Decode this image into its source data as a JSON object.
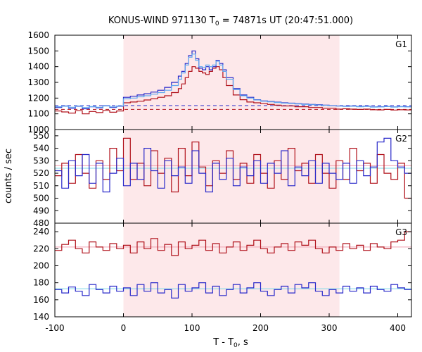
{
  "chart_data": {
    "type": "line",
    "title_main": "KONUS-WIND 971130 T",
    "title_sub": "0",
    "title_rest": " = 74871s UT (20:47:51.000)",
    "xlabel_main": "T - T",
    "xlabel_sub": "0",
    "xlabel_rest": ", s",
    "ylabel": "counts / sec",
    "xlim": [
      -100,
      420
    ],
    "xticks": [
      -100,
      0,
      100,
      200,
      300,
      400
    ],
    "shaded_interval": [
      0,
      315
    ],
    "colors": {
      "shade": "#fde8ea",
      "red": "#b0101a",
      "blue": "#2727c9",
      "light_blue": "#5fa8f0",
      "pink": "#f0a0b0",
      "light_cyan": "#7fd8e8"
    },
    "panels": [
      {
        "label": "G1",
        "ylim": [
          1000,
          1600
        ],
        "yticks": [
          1000,
          1100,
          1200,
          1300,
          1400,
          1500,
          1600
        ],
        "background_levels": [
          {
            "color": "red",
            "value": 1128
          },
          {
            "color": "blue",
            "value": 1152
          }
        ],
        "series": [
          {
            "color": "red",
            "x": [
              -100,
              -90,
              -80,
              -70,
              -60,
              -50,
              -40,
              -30,
              -20,
              -10,
              0,
              10,
              20,
              30,
              40,
              50,
              60,
              70,
              80,
              85,
              90,
              95,
              100,
              105,
              110,
              115,
              120,
              125,
              130,
              135,
              140,
              145,
              150,
              160,
              170,
              180,
              190,
              200,
              210,
              220,
              230,
              240,
              250,
              260,
              270,
              280,
              290,
              300,
              310,
              320,
              330,
              340,
              350,
              360,
              370,
              380,
              390,
              400,
              410
            ],
            "y": [
              1118,
              1112,
              1105,
              1120,
              1100,
              1115,
              1108,
              1122,
              1110,
              1118,
              1170,
              1175,
              1180,
              1188,
              1195,
              1205,
              1215,
              1235,
              1260,
              1290,
              1330,
              1370,
              1400,
              1390,
              1370,
              1360,
              1350,
              1370,
              1390,
              1400,
              1380,
              1330,
              1280,
              1220,
              1190,
              1175,
              1170,
              1165,
              1160,
              1155,
              1150,
              1150,
              1145,
              1145,
              1140,
              1140,
              1135,
              1135,
              1130,
              1132,
              1130,
              1128,
              1130,
              1126,
              1125,
              1128,
              1124,
              1126,
              1125
            ]
          },
          {
            "color": "blue",
            "x": [
              -100,
              -90,
              -80,
              -70,
              -60,
              -50,
              -40,
              -30,
              -20,
              -10,
              0,
              10,
              20,
              30,
              40,
              50,
              60,
              70,
              80,
              85,
              90,
              95,
              100,
              105,
              110,
              115,
              120,
              125,
              130,
              135,
              140,
              145,
              150,
              160,
              170,
              180,
              190,
              200,
              210,
              220,
              230,
              240,
              250,
              260,
              270,
              280,
              290,
              300,
              310,
              320,
              330,
              340,
              350,
              360,
              370,
              380,
              390,
              400,
              410
            ],
            "y": [
              1140,
              1150,
              1135,
              1148,
              1132,
              1145,
              1138,
              1152,
              1140,
              1148,
              1205,
              1212,
              1220,
              1228,
              1238,
              1250,
              1268,
              1300,
              1340,
              1370,
              1420,
              1470,
              1500,
              1450,
              1390,
              1380,
              1400,
              1380,
              1400,
              1440,
              1420,
              1380,
              1330,
              1260,
              1220,
              1205,
              1190,
              1182,
              1178,
              1174,
              1170,
              1168,
              1165,
              1162,
              1160,
              1158,
              1155,
              1152,
              1150,
              1148,
              1150,
              1146,
              1148,
              1144,
              1145,
              1147,
              1144,
              1146,
              1145
            ]
          },
          {
            "color": "light_blue",
            "x": [
              -100,
              -90,
              -80,
              -70,
              -60,
              -50,
              -40,
              -30,
              -20,
              -10,
              0,
              10,
              20,
              30,
              40,
              50,
              60,
              70,
              80,
              85,
              90,
              95,
              100,
              105,
              110,
              115,
              120,
              125,
              130,
              135,
              140,
              145,
              150,
              160,
              170,
              180,
              190,
              200,
              210,
              220,
              230,
              240,
              250,
              260,
              270,
              280,
              290,
              300,
              310,
              320,
              330,
              340,
              350,
              360,
              370,
              380,
              390,
              400,
              410
            ],
            "y": [
              1145,
              1148,
              1142,
              1150,
              1140,
              1146,
              1142,
              1150,
              1144,
              1150,
              1195,
              1200,
              1208,
              1215,
              1225,
              1235,
              1250,
              1280,
              1320,
              1360,
              1410,
              1460,
              1480,
              1440,
              1400,
              1395,
              1410,
              1400,
              1410,
              1435,
              1410,
              1370,
              1320,
              1255,
              1215,
              1200,
              1188,
              1180,
              1176,
              1172,
              1168,
              1166,
              1163,
              1160,
              1158,
              1156,
              1154,
              1151,
              1149,
              1147,
              1148,
              1145,
              1147,
              1143,
              1144,
              1146,
              1143,
              1145,
              1144
            ]
          }
        ]
      },
      {
        "label": "G2",
        "ylim": [
          480,
          555
        ],
        "yticks": [
          480,
          490,
          500,
          510,
          520,
          530,
          540,
          550
        ],
        "background_levels": [
          {
            "color": "pink",
            "value": 526
          },
          {
            "color": "light_cyan",
            "value": 524
          }
        ],
        "series": [
          {
            "color": "red",
            "x": [
              -100,
              -90,
              -80,
              -70,
              -60,
              -50,
              -40,
              -30,
              -20,
              -10,
              0,
              10,
              20,
              30,
              40,
              50,
              60,
              70,
              80,
              90,
              100,
              110,
              120,
              130,
              140,
              150,
              160,
              170,
              180,
              190,
              200,
              210,
              220,
              230,
              240,
              250,
              260,
              270,
              280,
              290,
              300,
              310,
              320,
              330,
              340,
              350,
              360,
              370,
              380,
              390,
              400,
              410
            ],
            "y": [
              518,
              528,
              512,
              535,
              520,
              508,
              530,
              515,
              540,
              522,
              548,
              515,
              528,
              510,
              538,
              520,
              532,
              505,
              540,
              518,
              545,
              525,
              510,
              530,
              520,
              538,
              515,
              528,
              512,
              535,
              520,
              508,
              530,
              515,
              540,
              522,
              528,
              512,
              535,
              520,
              508,
              530,
              515,
              540,
              522,
              528,
              512,
              535,
              520,
              515,
              528,
              500
            ]
          },
          {
            "color": "blue",
            "x": [
              -100,
              -90,
              -80,
              -70,
              -60,
              -50,
              -40,
              -30,
              -20,
              -10,
              0,
              10,
              20,
              30,
              40,
              50,
              60,
              70,
              80,
              90,
              100,
              110,
              120,
              130,
              140,
              150,
              160,
              170,
              180,
              190,
              200,
              210,
              220,
              230,
              240,
              250,
              260,
              270,
              280,
              290,
              300,
              310,
              320,
              330,
              340,
              350,
              360,
              370,
              380,
              390,
              400,
              410
            ],
            "y": [
              522,
              508,
              530,
              518,
              535,
              512,
              528,
              505,
              520,
              532,
              510,
              528,
              515,
              540,
              522,
              508,
              530,
              518,
              525,
              512,
              538,
              520,
              505,
              528,
              515,
              532,
              510,
              525,
              518,
              530,
              512,
              528,
              520,
              538,
              510,
              525,
              518,
              530,
              512,
              528,
              520,
              515,
              528,
              512,
              530,
              518,
              525,
              545,
              548,
              530,
              525,
              520
            ]
          }
        ]
      },
      {
        "label": "G3",
        "ylim": [
          140,
          250
        ],
        "yticks": [
          140,
          160,
          180,
          200,
          220,
          240
        ],
        "background_levels": [
          {
            "color": "pink",
            "value": 222
          },
          {
            "color": "light_cyan",
            "value": 173
          }
        ],
        "series": [
          {
            "color": "red",
            "x": [
              -100,
              -90,
              -80,
              -70,
              -60,
              -50,
              -40,
              -30,
              -20,
              -10,
              0,
              10,
              20,
              30,
              40,
              50,
              60,
              70,
              80,
              90,
              100,
              110,
              120,
              130,
              140,
              150,
              160,
              170,
              180,
              190,
              200,
              210,
              220,
              230,
              240,
              250,
              260,
              270,
              280,
              290,
              300,
              310,
              320,
              330,
              340,
              350,
              360,
              370,
              380,
              390,
              400,
              410
            ],
            "y": [
              218,
              225,
              230,
              220,
              215,
              228,
              222,
              218,
              226,
              220,
              224,
              215,
              228,
              220,
              232,
              218,
              225,
              212,
              228,
              220,
              224,
              230,
              218,
              226,
              215,
              222,
              228,
              218,
              224,
              230,
              220,
              215,
              222,
              226,
              218,
              228,
              224,
              230,
              220,
              215,
              222,
              218,
              226,
              220,
              224,
              218,
              226,
              222,
              220,
              228,
              230,
              240
            ]
          },
          {
            "color": "blue",
            "x": [
              -100,
              -90,
              -80,
              -70,
              -60,
              -50,
              -40,
              -30,
              -20,
              -10,
              0,
              10,
              20,
              30,
              40,
              50,
              60,
              70,
              80,
              90,
              100,
              110,
              120,
              130,
              140,
              150,
              160,
              170,
              180,
              190,
              200,
              210,
              220,
              230,
              240,
              250,
              260,
              270,
              280,
              290,
              300,
              310,
              320,
              330,
              340,
              350,
              360,
              370,
              380,
              390,
              400,
              410
            ],
            "y": [
              172,
              168,
              175,
              170,
              165,
              178,
              172,
              168,
              176,
              170,
              174,
              165,
              178,
              170,
              180,
              168,
              172,
              162,
              178,
              170,
              174,
              180,
              168,
              176,
              165,
              172,
              178,
              168,
              174,
              180,
              170,
              165,
              172,
              176,
              168,
              178,
              174,
              180,
              170,
              165,
              172,
              168,
              176,
              170,
              174,
              168,
              176,
              172,
              170,
              178,
              174,
              172
            ]
          }
        ]
      }
    ]
  }
}
